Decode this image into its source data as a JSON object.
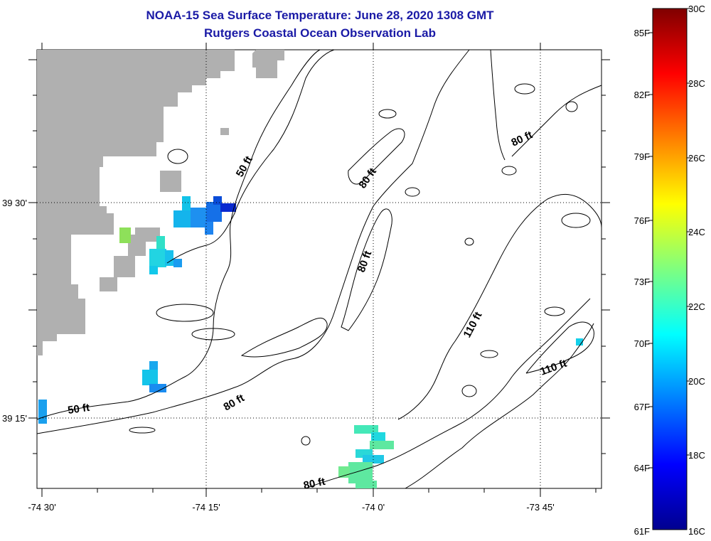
{
  "header": {
    "title": "NOAA-15 Sea Surface Temperature:  June 28, 2020 1308 GMT",
    "subtitle": "Rutgers Coastal Ocean Observation Lab"
  },
  "axes": {
    "x_ticks": [
      "-74 30'",
      "-74 15'",
      "-74 0'",
      "-73 45'"
    ],
    "y_ticks": [
      "39 30'",
      "39 15'"
    ]
  },
  "contour_labels": [
    "50 ft",
    "50 ft",
    "80 ft",
    "80 ft",
    "80 ft",
    "80 ft",
    "80 ft",
    "110 ft",
    "110 ft"
  ],
  "colorbar": {
    "fahrenheit": [
      "85F",
      "82F",
      "79F",
      "76F",
      "73F",
      "70F",
      "67F",
      "64F",
      "61F"
    ],
    "celsius": [
      "30C",
      "28C",
      "26C",
      "24C",
      "22C",
      "20C",
      "18C",
      "16C"
    ]
  },
  "colors": {
    "land": "#b0b0b0",
    "title": "#1a1aa6"
  }
}
